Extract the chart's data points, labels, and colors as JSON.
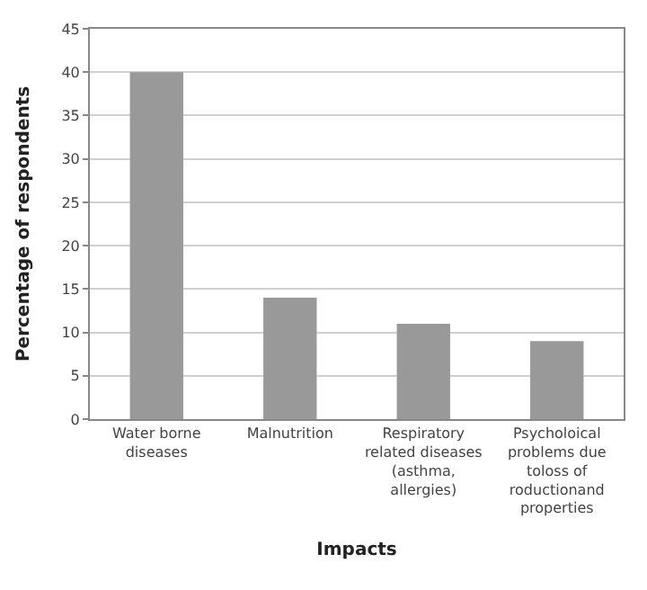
{
  "chart_data": {
    "type": "bar",
    "categories": [
      "Water borne diseases",
      "Malnutrition",
      "Respiratory related diseases (asthma, allergies)",
      "Psycholoical problems due toloss of roductionand properties"
    ],
    "values": [
      40,
      14,
      11,
      9
    ],
    "color": "#999999",
    "xlabel": "Impacts",
    "ylabel": "Percentage of respondents",
    "ylim": [
      0,
      45
    ],
    "yticks": [
      0,
      5,
      10,
      15,
      20,
      25,
      30,
      35,
      40,
      45
    ],
    "grid": "y"
  }
}
